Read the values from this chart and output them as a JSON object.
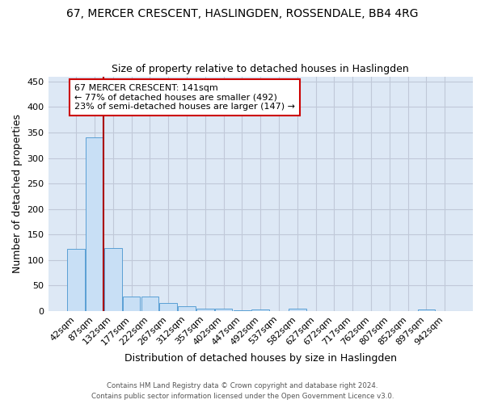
{
  "title": "67, MERCER CRESCENT, HASLINGDEN, ROSSENDALE, BB4 4RG",
  "subtitle": "Size of property relative to detached houses in Haslingden",
  "xlabel": "Distribution of detached houses by size in Haslingden",
  "ylabel": "Number of detached properties",
  "bin_labels": [
    "42sqm",
    "87sqm",
    "132sqm",
    "177sqm",
    "222sqm",
    "267sqm",
    "312sqm",
    "357sqm",
    "402sqm",
    "447sqm",
    "492sqm",
    "537sqm",
    "582sqm",
    "627sqm",
    "672sqm",
    "717sqm",
    "762sqm",
    "807sqm",
    "852sqm",
    "897sqm",
    "942sqm"
  ],
  "bar_values": [
    122,
    340,
    124,
    28,
    29,
    15,
    9,
    5,
    4,
    2,
    3,
    0,
    5,
    0,
    0,
    0,
    0,
    0,
    0,
    3,
    0
  ],
  "bar_color": "#c8dff5",
  "bar_edge_color": "#5a9fd4",
  "grid_color": "#c0c8d8",
  "background_color": "#dde8f5",
  "vline_color": "#aa0000",
  "vline_x_index": 2.0,
  "annotation_text": "67 MERCER CRESCENT: 141sqm\n← 77% of detached houses are smaller (492)\n23% of semi-detached houses are larger (147) →",
  "annotation_box_color": "white",
  "annotation_box_edge": "#cc0000",
  "ylim": [
    0,
    460
  ],
  "yticks": [
    0,
    50,
    100,
    150,
    200,
    250,
    300,
    350,
    400,
    450
  ],
  "title_fontsize": 10,
  "subtitle_fontsize": 9,
  "footer_line1": "Contains HM Land Registry data © Crown copyright and database right 2024.",
  "footer_line2": "Contains public sector information licensed under the Open Government Licence v3.0."
}
